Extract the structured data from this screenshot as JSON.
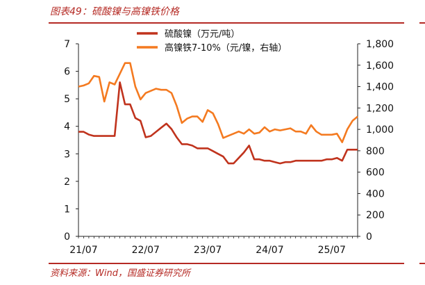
{
  "header": {
    "title": "图表49：硫酸镍与高镍铁价格",
    "source": "资料来源：Wind，国盛证券研究所"
  },
  "chart_data": {
    "type": "line",
    "title": "图表49：硫酸镍与高镍铁价格",
    "x_ticks": [
      "21/07",
      "22/07",
      "23/07",
      "24/07",
      "25/07"
    ],
    "x_range": [
      "2021-06",
      "2025-12"
    ],
    "y_left": {
      "ticks": [
        "0",
        "1",
        "2",
        "3",
        "4",
        "5",
        "6",
        "7"
      ],
      "range": [
        0,
        7
      ]
    },
    "y_right": {
      "ticks": [
        "0",
        "200",
        "400",
        "600",
        "800",
        "1,000",
        "1,200",
        "1,400",
        "1,600",
        "1,800"
      ],
      "range": [
        0,
        1800
      ]
    },
    "legend_position": "top-center",
    "grid": false,
    "series": [
      {
        "name": "硫酸镍（万元/吨）",
        "axis": "left",
        "color": "#c0331d",
        "x": [
          "2021-06",
          "2021-07",
          "2021-08",
          "2021-09",
          "2021-10",
          "2021-11",
          "2021-12",
          "2022-01",
          "2022-02",
          "2022-03",
          "2022-04",
          "2022-05",
          "2022-06",
          "2022-07",
          "2022-08",
          "2022-09",
          "2022-10",
          "2022-11",
          "2022-12",
          "2023-01",
          "2023-02",
          "2023-03",
          "2023-04",
          "2023-05",
          "2023-06",
          "2023-07",
          "2023-08",
          "2023-09",
          "2023-10",
          "2023-11",
          "2023-12",
          "2024-01",
          "2024-02",
          "2024-03",
          "2024-04",
          "2024-05",
          "2024-06",
          "2024-07",
          "2024-08",
          "2024-09",
          "2024-10",
          "2024-11",
          "2024-12",
          "2025-01",
          "2025-02",
          "2025-03",
          "2025-04",
          "2025-05",
          "2025-06",
          "2025-07",
          "2025-08",
          "2025-09",
          "2025-10",
          "2025-11",
          "2025-12"
        ],
        "values": [
          3.8,
          3.8,
          3.7,
          3.65,
          3.65,
          3.65,
          3.65,
          3.65,
          5.6,
          4.8,
          4.8,
          4.3,
          4.2,
          3.6,
          3.65,
          3.8,
          3.95,
          4.1,
          3.9,
          3.6,
          3.35,
          3.35,
          3.3,
          3.2,
          3.2,
          3.2,
          3.1,
          3.0,
          2.9,
          2.65,
          2.65,
          2.85,
          3.05,
          3.3,
          2.8,
          2.8,
          2.75,
          2.75,
          2.7,
          2.65,
          2.7,
          2.7,
          2.75,
          2.75,
          2.75,
          2.75,
          2.75,
          2.75,
          2.8,
          2.8,
          2.85,
          2.75,
          3.15,
          3.15,
          3.15
        ]
      },
      {
        "name": "高镍铁7-10%（元/镍，右轴）",
        "axis": "right",
        "color": "#f47a20",
        "x": [
          "2021-06",
          "2021-07",
          "2021-08",
          "2021-09",
          "2021-10",
          "2021-11",
          "2021-12",
          "2022-01",
          "2022-02",
          "2022-03",
          "2022-04",
          "2022-05",
          "2022-06",
          "2022-07",
          "2022-08",
          "2022-09",
          "2022-10",
          "2022-11",
          "2022-12",
          "2023-01",
          "2023-02",
          "2023-03",
          "2023-04",
          "2023-05",
          "2023-06",
          "2023-07",
          "2023-08",
          "2023-09",
          "2023-10",
          "2023-11",
          "2023-12",
          "2024-01",
          "2024-02",
          "2024-03",
          "2024-04",
          "2024-05",
          "2024-06",
          "2024-07",
          "2024-08",
          "2024-09",
          "2024-10",
          "2024-11",
          "2024-12",
          "2025-01",
          "2025-02",
          "2025-03",
          "2025-04",
          "2025-05",
          "2025-06",
          "2025-07",
          "2025-08",
          "2025-09",
          "2025-10",
          "2025-11",
          "2025-12"
        ],
        "values": [
          1400,
          1410,
          1430,
          1500,
          1490,
          1260,
          1440,
          1420,
          1520,
          1620,
          1620,
          1400,
          1280,
          1340,
          1360,
          1380,
          1370,
          1370,
          1340,
          1220,
          1060,
          1100,
          1120,
          1120,
          1070,
          1180,
          1150,
          1050,
          920,
          940,
          960,
          980,
          960,
          1000,
          960,
          970,
          1020,
          980,
          1000,
          990,
          1000,
          1010,
          980,
          980,
          960,
          1040,
          980,
          950,
          950,
          950,
          960,
          880,
          1000,
          1080,
          1120
        ]
      }
    ]
  }
}
